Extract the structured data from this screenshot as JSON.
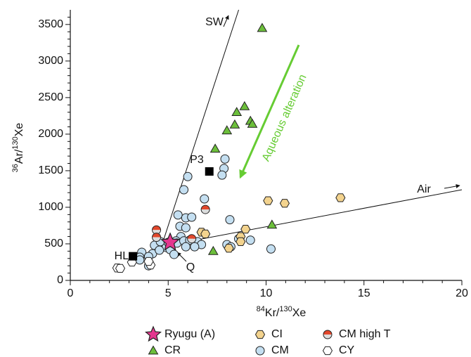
{
  "chart_data": {
    "type": "scatter",
    "xlabel": [
      "84",
      "Kr/",
      "130",
      "Xe"
    ],
    "ylabel": [
      "36",
      "Ar/",
      "130",
      "Xe"
    ],
    "xlim": [
      0,
      20
    ],
    "ylim": [
      0,
      3700
    ],
    "xticks": [
      0,
      5,
      10,
      15,
      20
    ],
    "yticks": [
      0,
      500,
      1000,
      1500,
      2000,
      2500,
      3000,
      3500
    ],
    "xminorticks": [
      1,
      2,
      3,
      4,
      6,
      7,
      8,
      9,
      11,
      12,
      13,
      14,
      16,
      17,
      18,
      19
    ],
    "yminorticks": [
      100,
      200,
      300,
      400,
      600,
      700,
      800,
      900,
      1100,
      1200,
      1300,
      1400,
      1600,
      1700,
      1800,
      1900,
      2100,
      2200,
      2300,
      2400,
      2600,
      2700,
      2800,
      2900,
      3100,
      3200,
      3300,
      3400,
      3600
    ],
    "series": [
      {
        "name": "Ryugu (A)",
        "marker": "star",
        "color": "#e4378f",
        "x": [
          5.1
        ],
        "y": [
          520
        ]
      },
      {
        "name": "CI",
        "marker": "hexagon",
        "color": "#f3d38e",
        "x": [
          13.8,
          10.1,
          10.95,
          6.7,
          6.9,
          8.95,
          8.7,
          8.1,
          8.7
        ],
        "y": [
          1130,
          1090,
          1055,
          660,
          635,
          700,
          600,
          440,
          530
        ]
      },
      {
        "name": "CM high T",
        "marker": "half",
        "color": "#e2472b",
        "x": [
          4.4,
          4.4,
          6.9,
          6.2
        ],
        "y": [
          690,
          590,
          970,
          570
        ]
      },
      {
        "name": "CR",
        "marker": "triangle",
        "color": "#6cbf3b",
        "x": [
          9.8,
          8.5,
          8.9,
          9.2,
          9.3,
          8.4,
          8.0,
          7.4,
          7.3,
          10.3
        ],
        "y": [
          3450,
          2300,
          2380,
          2180,
          2140,
          2130,
          2050,
          1800,
          400,
          760
        ]
      },
      {
        "name": "CM",
        "marker": "circle",
        "color": "#c4dff1",
        "x": [
          6.0,
          5.8,
          7.9,
          7.85,
          7.75,
          6.85,
          5.5,
          5.9,
          6.2,
          8.15,
          5.6,
          5.9,
          5.65,
          5.4,
          5.45,
          5.8,
          6.1,
          5.9,
          6.5,
          6.7,
          6.35,
          4.3,
          4.6,
          4.9,
          5.0,
          5.1,
          4.2,
          3.65,
          3.55,
          4.0,
          4.55,
          4.0,
          3.55,
          8.0,
          8.2,
          8.6,
          9.2,
          10.25,
          5.3
        ],
        "y": [
          1420,
          1240,
          1660,
          1530,
          1440,
          1115,
          895,
          855,
          865,
          830,
          740,
          720,
          600,
          540,
          510,
          540,
          550,
          460,
          530,
          490,
          460,
          480,
          530,
          450,
          520,
          420,
          365,
          385,
          317,
          327,
          413,
          200,
          280,
          490,
          460,
          570,
          550,
          430,
          355
        ]
      },
      {
        "name": "CY",
        "marker": "hexagon",
        "color": "#ffffff",
        "x": [
          2.4,
          2.55,
          3.15,
          4.1,
          4.0
        ],
        "y": [
          170,
          165,
          250,
          210,
          260
        ]
      }
    ],
    "points": [
      {
        "label": "P3",
        "x": 7.1,
        "y": 1490
      },
      {
        "label": "HL",
        "x": 3.2,
        "y": 330
      }
    ],
    "lines": [
      {
        "label": "SW",
        "x": [
          4.6,
          8.6
        ],
        "y": [
          420,
          3700
        ]
      },
      {
        "label": "Air",
        "x": [
          5.0,
          20
        ],
        "y": [
          480,
          1240
        ]
      }
    ],
    "annotations": {
      "alteration": "Aqueous alteration",
      "q": "Q"
    }
  }
}
